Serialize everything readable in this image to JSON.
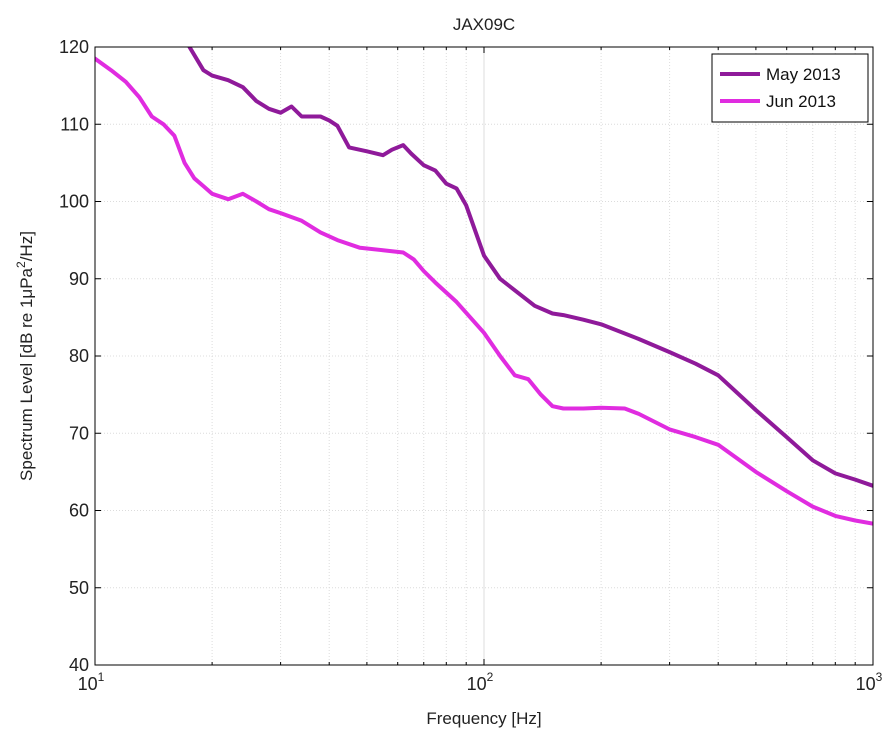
{
  "chart_data": {
    "type": "line",
    "title": "JAX09C",
    "xlabel": "Frequency [Hz]",
    "ylabel_parts": {
      "before_mu": "Spectrum Level [dB re 1",
      "mu": "μ",
      "pa": "Pa",
      "sup": "2",
      "after": "/Hz]"
    },
    "xscale": "log",
    "xlim": [
      10,
      1000
    ],
    "ylim": [
      40,
      120
    ],
    "x_tick_labels": [
      {
        "value": 10,
        "base": "10",
        "exp": "1"
      },
      {
        "value": 100,
        "base": "10",
        "exp": "2"
      },
      {
        "value": 1000,
        "base": "10",
        "exp": "3"
      }
    ],
    "y_ticks": [
      40,
      50,
      60,
      70,
      80,
      90,
      100,
      110,
      120
    ],
    "grid": true,
    "legend_position": "top-right",
    "series": [
      {
        "name": "May 2013",
        "color": "#8f1a9a",
        "x": [
          17.5,
          19,
          20,
          22,
          24,
          26,
          28,
          30,
          32,
          34,
          36,
          38,
          40,
          42,
          45,
          50,
          55,
          58,
          62,
          65,
          70,
          75,
          80,
          85,
          90,
          100,
          110,
          120,
          135,
          150,
          160,
          180,
          200,
          250,
          300,
          350,
          400,
          500,
          600,
          700,
          800,
          900,
          1000
        ],
        "y": [
          120,
          117,
          116.3,
          115.7,
          114.8,
          113,
          112,
          111.5,
          112.3,
          111,
          111,
          111,
          110.5,
          109.8,
          107,
          106.5,
          106,
          106.7,
          107.3,
          106.2,
          104.7,
          104,
          102.3,
          101.7,
          99.5,
          93,
          90,
          88.5,
          86.5,
          85.5,
          85.3,
          84.7,
          84.1,
          82.2,
          80.5,
          79,
          77.5,
          73,
          69.5,
          66.5,
          64.8,
          64,
          63.2
        ]
      },
      {
        "name": "Jun 2013",
        "color": "#e02ce0",
        "x": [
          10,
          11,
          12,
          13,
          14,
          15,
          16,
          17,
          18,
          19,
          20,
          22,
          24,
          26,
          28,
          30,
          34,
          38,
          42,
          48,
          55,
          62,
          66,
          70,
          75,
          85,
          100,
          110,
          120,
          130,
          140,
          150,
          160,
          180,
          200,
          230,
          250,
          300,
          350,
          400,
          500,
          600,
          700,
          800,
          900,
          1000
        ],
        "y": [
          118.5,
          117,
          115.5,
          113.5,
          111,
          110,
          108.5,
          105,
          103,
          102,
          101,
          100.3,
          101,
          100,
          99,
          98.5,
          97.5,
          96,
          95,
          94,
          93.7,
          93.4,
          92.5,
          91,
          89.5,
          87,
          83,
          80,
          77.5,
          77,
          75,
          73.5,
          73.2,
          73.2,
          73.3,
          73.2,
          72.5,
          70.5,
          69.5,
          68.5,
          65,
          62.5,
          60.5,
          59.3,
          58.7,
          58.3
        ]
      }
    ]
  }
}
